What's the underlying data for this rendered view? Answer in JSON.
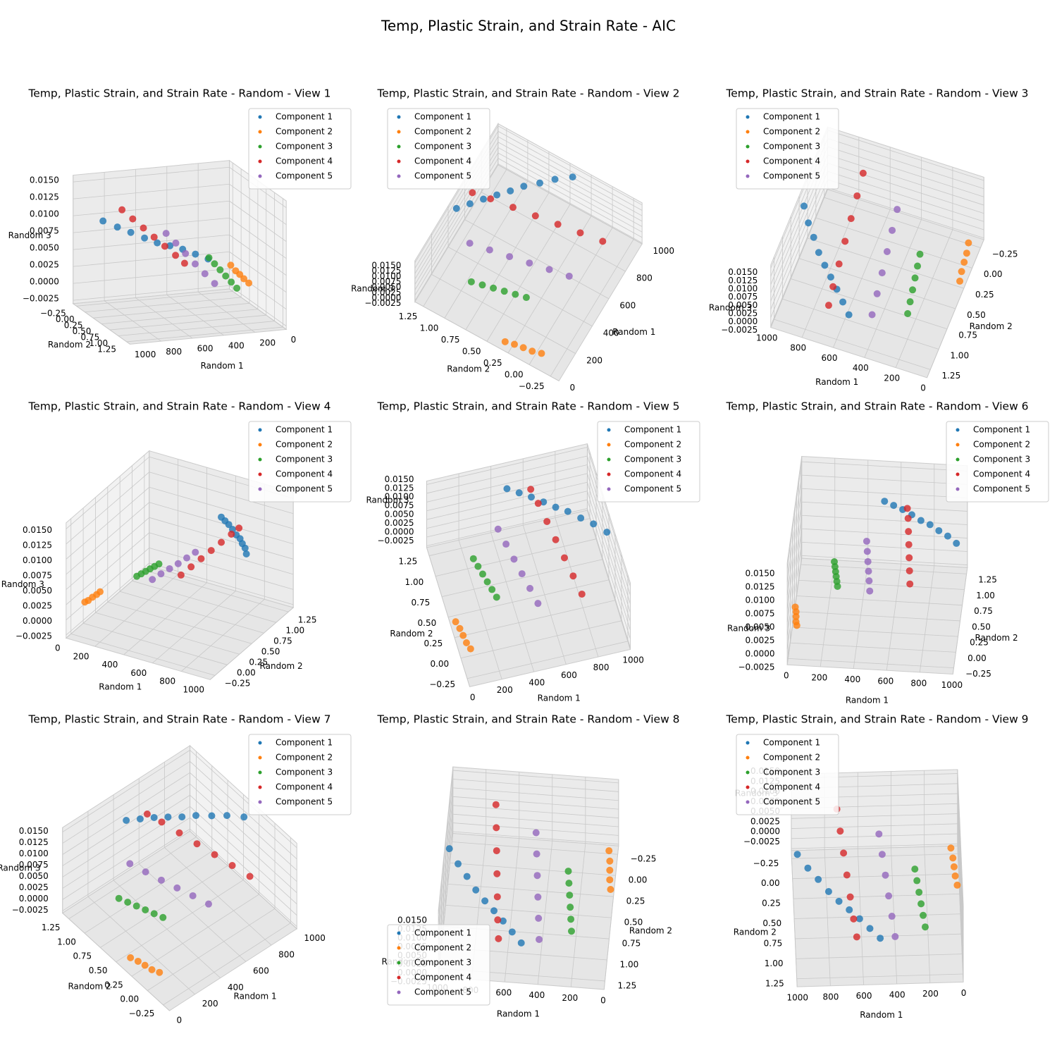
{
  "chart_data": {
    "type": "scatter3d",
    "title": "Temp, Plastic Strain, and Strain Rate - AIC",
    "subplot_titles": [
      "Temp, Plastic Strain, and Strain Rate - Random - View 1",
      "Temp, Plastic Strain, and Strain Rate - Random - View 2",
      "Temp, Plastic Strain, and Strain Rate - Random - View 3",
      "Temp, Plastic Strain, and Strain Rate - Random - View 4",
      "Temp, Plastic Strain, and Strain Rate - Random - View 5",
      "Temp, Plastic Strain, and Strain Rate - Random - View 6",
      "Temp, Plastic Strain, and Strain Rate - Random - View 7",
      "Temp, Plastic Strain, and Strain Rate - Random - View 8",
      "Temp, Plastic Strain, and Strain Rate - Random - View 9"
    ],
    "legend_loc": [
      "upper right",
      "upper left",
      "upper left",
      "upper right",
      "upper right",
      "upper right",
      "upper right",
      "lower left",
      "upper left"
    ],
    "xlabel": "Random 1",
    "ylabel": "Random 2",
    "zlabel": "Random 3",
    "xlim": [
      0,
      1000
    ],
    "ylim": [
      -0.35,
      1.35
    ],
    "zlim": [
      -0.003,
      0.016
    ],
    "xticks": [
      0,
      200,
      400,
      600,
      800,
      1000
    ],
    "yticks": [
      {
        "value": -0.25,
        "label": "−0.25"
      },
      {
        "value": 0,
        "label": "0.00"
      },
      {
        "value": 0.25,
        "label": "0.25"
      },
      {
        "value": 0.5,
        "label": "0.50"
      },
      {
        "value": 0.75,
        "label": "0.75"
      },
      {
        "value": 1,
        "label": "1.00"
      },
      {
        "value": 1.25,
        "label": "1.25"
      }
    ],
    "zticks": [
      {
        "value": -0.0025,
        "label": "−0.0025"
      },
      {
        "value": 0,
        "label": "0.0000"
      },
      {
        "value": 0.0025,
        "label": "0.0025"
      },
      {
        "value": 0.005,
        "label": "0.0050"
      },
      {
        "value": 0.0075,
        "label": "0.0075"
      },
      {
        "value": 0.01,
        "label": "0.0100"
      },
      {
        "value": 0.0125,
        "label": "0.0125"
      },
      {
        "value": 0.015,
        "label": "0.0150"
      }
    ],
    "series": [
      {
        "name": "Component 1",
        "color": "#1f77b4",
        "x": [
          980,
          920,
          860,
          800,
          740,
          680,
          620,
          560,
          500
        ],
        "y": [
          0.45,
          0.6,
          0.72,
          0.85,
          0.95,
          1.05,
          1.15,
          1.25,
          1.35
        ],
        "z": [
          0.012,
          0.0115,
          0.011,
          0.0105,
          0.01,
          0.0098,
          0.0095,
          0.009,
          0.0085
        ]
      },
      {
        "name": "Component 2",
        "color": "#ff7f0e",
        "x": [
          45,
          35,
          30,
          25,
          15
        ],
        "y": [
          -0.1,
          0.0,
          0.1,
          0.2,
          0.3
        ],
        "z": [
          0.0015,
          0.001,
          0.0008,
          0.0005,
          0.0002
        ]
      },
      {
        "name": "Component 3",
        "color": "#2ca02c",
        "x": [
          270,
          260,
          250,
          240,
          230,
          220
        ],
        "y": [
          0.3,
          0.42,
          0.54,
          0.66,
          0.78,
          0.9
        ],
        "z": [
          0.0045,
          0.004,
          0.0035,
          0.003,
          0.0025,
          0.002
        ]
      },
      {
        "name": "Component 4",
        "color": "#d62728",
        "x": [
          730,
          715,
          700,
          685,
          670,
          655,
          640
        ],
        "y": [
          -0.15,
          0.1,
          0.35,
          0.6,
          0.85,
          1.1,
          1.3
        ],
        "z": [
          0.011,
          0.0105,
          0.01,
          0.0095,
          0.009,
          0.0085,
          0.008
        ]
      },
      {
        "name": "Component 5",
        "color": "#9467bd",
        "x": [
          480,
          465,
          450,
          435,
          420,
          405
        ],
        "y": [
          0.0,
          0.22,
          0.44,
          0.66,
          0.88,
          1.1
        ],
        "z": [
          0.0075,
          0.0068,
          0.006,
          0.0052,
          0.0045,
          0.0038
        ]
      }
    ]
  }
}
